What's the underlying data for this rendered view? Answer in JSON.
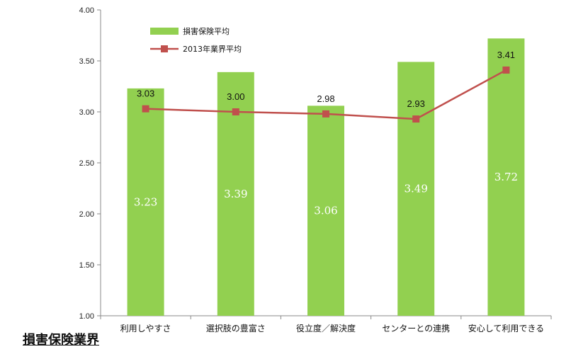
{
  "chart_data": {
    "type": "bar",
    "categories": [
      "利用しやすさ",
      "選択肢の豊富さ",
      "役立度／解決度",
      "センターとの連携",
      "安心して利用できる"
    ],
    "ylim": [
      1.0,
      4.0
    ],
    "yticks": [
      "1.00",
      "1.50",
      "2.00",
      "2.50",
      "3.00",
      "3.50",
      "4.00"
    ],
    "grid": false,
    "legend_position": "top-left",
    "series": [
      {
        "name": "損害保険平均",
        "type": "bar",
        "color": "#92d050",
        "values": [
          3.23,
          3.39,
          3.06,
          3.49,
          3.72
        ],
        "labels": [
          "3.23",
          "3.39",
          "3.06",
          "3.49",
          "3.72"
        ]
      },
      {
        "name": "2013年業界平均",
        "type": "line",
        "color": "#c0504d",
        "values": [
          3.03,
          3.0,
          2.98,
          2.93,
          3.41
        ],
        "labels": [
          "3.03",
          "3.00",
          "2.98",
          "2.93",
          "3.41"
        ]
      }
    ]
  },
  "caption": "損害保険業界"
}
